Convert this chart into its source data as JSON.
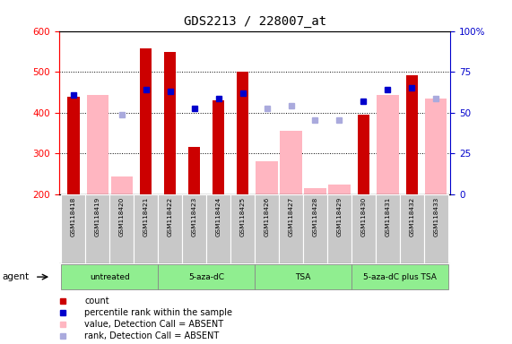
{
  "title": "GDS2213 / 228007_at",
  "samples": [
    "GSM118418",
    "GSM118419",
    "GSM118420",
    "GSM118421",
    "GSM118422",
    "GSM118423",
    "GSM118424",
    "GSM118425",
    "GSM118426",
    "GSM118427",
    "GSM118428",
    "GSM118429",
    "GSM118430",
    "GSM118431",
    "GSM118432",
    "GSM118433"
  ],
  "count_values": [
    440,
    null,
    null,
    558,
    548,
    316,
    430,
    500,
    null,
    null,
    null,
    null,
    396,
    null,
    492,
    null
  ],
  "count_color": "#CC0000",
  "absent_value_values": [
    null,
    443,
    243,
    null,
    null,
    null,
    null,
    null,
    280,
    355,
    215,
    225,
    null,
    443,
    null,
    435
  ],
  "absent_value_color": "#FFB6C1",
  "percentile_rank_values": [
    443,
    null,
    null,
    456,
    452,
    411,
    435,
    447,
    null,
    null,
    null,
    null,
    428,
    457,
    460,
    null
  ],
  "percentile_rank_color": "#0000CC",
  "absent_rank_values": [
    null,
    null,
    394,
    null,
    null,
    null,
    null,
    null,
    410,
    416,
    381,
    382,
    null,
    null,
    null,
    435
  ],
  "absent_rank_color": "#AAAADD",
  "ylim": [
    200,
    600
  ],
  "yticks_left": [
    200,
    300,
    400,
    500,
    600
  ],
  "yticks_right": [
    0,
    25,
    50,
    75,
    100
  ],
  "right_axis_color": "#0000CC",
  "group_labels": [
    "untreated",
    "5-aza-dC",
    "TSA",
    "5-aza-dC plus TSA"
  ],
  "group_ranges": [
    [
      0,
      3
    ],
    [
      4,
      7
    ],
    [
      8,
      11
    ],
    [
      12,
      15
    ]
  ],
  "group_color": "#90EE90",
  "legend_items": [
    {
      "label": "count",
      "color": "#CC0000"
    },
    {
      "label": "percentile rank within the sample",
      "color": "#0000CC"
    },
    {
      "label": "value, Detection Call = ABSENT",
      "color": "#FFB6C1"
    },
    {
      "label": "rank, Detection Call = ABSENT",
      "color": "#AAAADD"
    }
  ],
  "agent_label": "agent"
}
